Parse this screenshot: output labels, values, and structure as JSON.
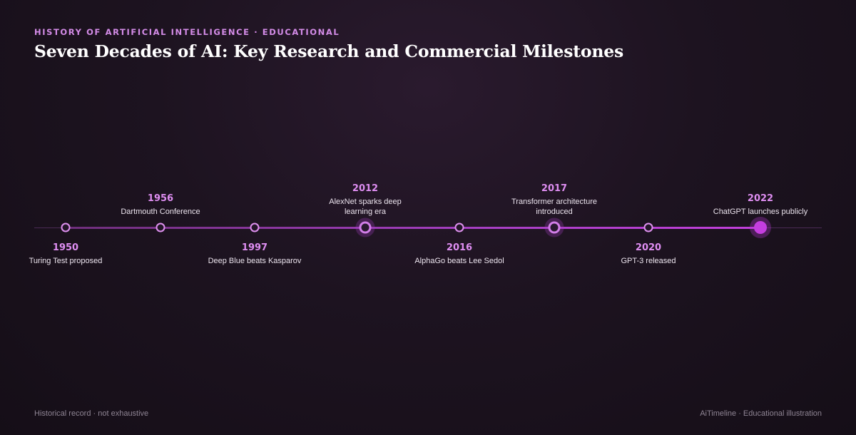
{
  "header": {
    "kicker": "HISTORY OF ARTIFICIAL INTELLIGENCE · EDUCATIONAL",
    "title": "Seven Decades of AI: Key Research and Commercial Milestones"
  },
  "milestones": [
    {
      "year": "1950",
      "event": "Turing Test proposed",
      "label_position": "below",
      "style": "normal"
    },
    {
      "year": "1956",
      "event": "Dartmouth Conference",
      "label_position": "above",
      "style": "normal"
    },
    {
      "year": "1997",
      "event": "Deep Blue beats Kasparov",
      "label_position": "below",
      "style": "normal"
    },
    {
      "year": "2012",
      "event": "AlexNet sparks deep learning era",
      "label_position": "above",
      "style": "major"
    },
    {
      "year": "2016",
      "event": "AlphaGo beats Lee Sedol",
      "label_position": "below",
      "style": "normal"
    },
    {
      "year": "2017",
      "event": "Transformer architecture introduced",
      "label_position": "above",
      "style": "major"
    },
    {
      "year": "2020",
      "event": "GPT-3 released",
      "label_position": "below",
      "style": "normal"
    },
    {
      "year": "2022",
      "event": "ChatGPT launches publicly",
      "label_position": "above",
      "style": "current"
    }
  ],
  "footer": {
    "left": "Historical record · not exhaustive",
    "right": "AiTimeline · Educational illustration"
  },
  "colors": {
    "accent": "#df8ef2",
    "current": "#c43edf",
    "background": "#1d1320"
  }
}
